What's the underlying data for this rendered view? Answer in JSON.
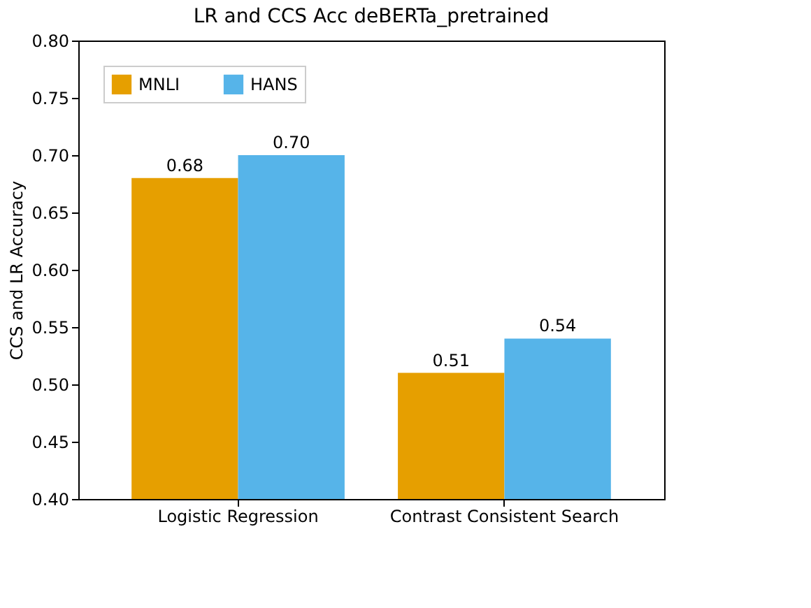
{
  "chart_data": {
    "type": "bar",
    "title": "LR and CCS Acc deBERTa_pretrained",
    "ylabel": "CCS and LR Accuracy",
    "categories": [
      "Logistic Regression",
      "Contrast Consistent Search"
    ],
    "series": [
      {
        "name": "MNLI",
        "color": "#e69f00",
        "values": [
          0.68,
          0.51
        ]
      },
      {
        "name": "HANS",
        "color": "#56b4e9",
        "values": [
          0.7,
          0.54
        ]
      }
    ],
    "value_labels": [
      [
        "0.68",
        "0.51"
      ],
      [
        "0.70",
        "0.54"
      ]
    ],
    "ylim": [
      0.4,
      0.8
    ],
    "yticks": [
      {
        "value": 0.4,
        "label": "0.40"
      },
      {
        "value": 0.45,
        "label": "0.45"
      },
      {
        "value": 0.5,
        "label": "0.50"
      },
      {
        "value": 0.55,
        "label": "0.55"
      },
      {
        "value": 0.6,
        "label": "0.60"
      },
      {
        "value": 0.65,
        "label": "0.65"
      },
      {
        "value": 0.7,
        "label": "0.70"
      },
      {
        "value": 0.75,
        "label": "0.75"
      },
      {
        "value": 0.8,
        "label": "0.80"
      }
    ],
    "legend": "top left",
    "grid": false
  }
}
